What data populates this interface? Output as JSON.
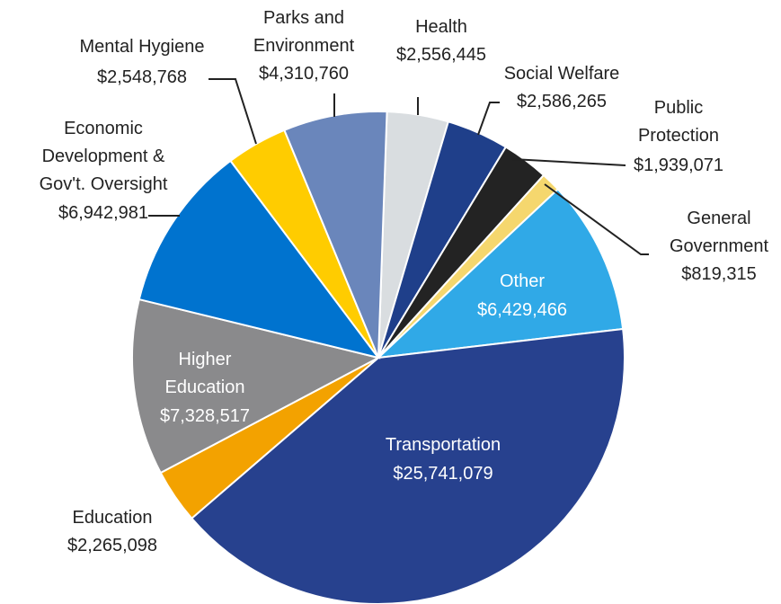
{
  "chart_data": {
    "type": "pie",
    "categories": [
      "Health",
      "Social Welfare",
      "Public\nProtection",
      "General\nGovernment",
      "Other",
      "Transportation",
      "Education",
      "Higher\nEducation",
      "Economic\nDevelopment  &\nGov't. Oversight",
      "Mental Hygiene",
      "Parks and\nEnvironment"
    ],
    "values": [
      2556445,
      2586265,
      1939071,
      819315,
      6429466,
      25741079,
      2265098,
      7328517,
      6942981,
      2548768,
      4310760
    ],
    "value_labels": [
      "$2,556,445",
      "$2,586,265",
      "$1,939,071",
      "$819,315",
      "$6,429,466",
      "$25,741,079",
      "$2,265,098",
      "$7,328,517",
      "$6,942,981",
      "$2,548,768",
      "$4,310,760"
    ],
    "colors": [
      "#d9dde0",
      "#1f3f8a",
      "#232323",
      "#f5d76e",
      "#30a9e7",
      "#27418e",
      "#f3a200",
      "#8a8a8c",
      "#0073cf",
      "#ffcc00",
      "#6a86bb"
    ]
  }
}
